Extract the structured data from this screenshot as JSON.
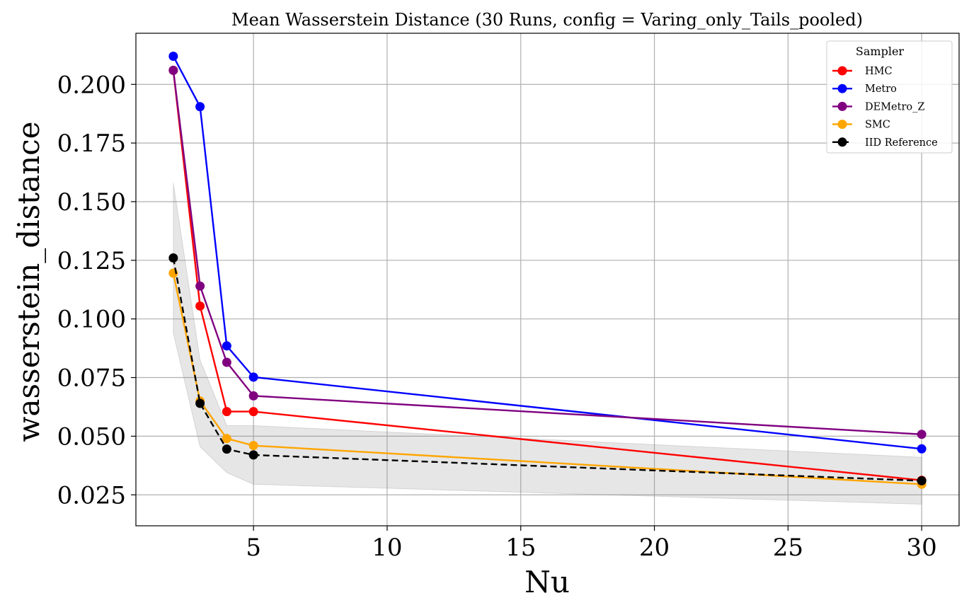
{
  "chart_data": {
    "type": "line",
    "title": "Mean Wasserstein Distance (30 Runs, config = Varing_only_Tails_pooled)",
    "xlabel": "Nu",
    "ylabel": "wasserstein_distance",
    "xlim": [
      0.6,
      31.4
    ],
    "ylim": [
      0.0118,
      0.2218
    ],
    "xticks": [
      5,
      10,
      15,
      20,
      25,
      30
    ],
    "yticks": [
      0.025,
      0.05,
      0.075,
      0.1,
      0.125,
      0.15,
      0.175,
      0.2
    ],
    "xtick_labels": [
      "5",
      "10",
      "15",
      "20",
      "25",
      "30"
    ],
    "ytick_labels": [
      "0.025",
      "0.050",
      "0.075",
      "0.100",
      "0.125",
      "0.150",
      "0.175",
      "0.200"
    ],
    "grid": true,
    "legend_title": "Sampler",
    "legend_position": "top-right",
    "x": [
      2,
      3,
      4,
      5,
      30
    ],
    "series": [
      {
        "name": "HMC",
        "color": "#ff0000",
        "dashed": false,
        "values": [
          0.206,
          0.1055,
          0.0605,
          0.0605,
          0.0312
        ]
      },
      {
        "name": "Metro",
        "color": "#0000ff",
        "dashed": false,
        "values": [
          0.212,
          0.1905,
          0.0885,
          0.0752,
          0.0446
        ]
      },
      {
        "name": "DEMetro_Z",
        "color": "#800080",
        "dashed": false,
        "values": [
          0.206,
          0.114,
          0.0815,
          0.0672,
          0.0508
        ]
      },
      {
        "name": "SMC",
        "color": "#ffa500",
        "dashed": false,
        "values": [
          0.1195,
          0.065,
          0.049,
          0.046,
          0.0295
        ]
      },
      {
        "name": "IID Reference",
        "color": "#000000",
        "dashed": true,
        "values": [
          0.126,
          0.064,
          0.0445,
          0.042,
          0.031
        ]
      }
    ],
    "band": {
      "color": "#808080",
      "lower": [
        0.094,
        0.0455,
        0.0345,
        0.0295,
        0.021
      ],
      "upper": [
        0.158,
        0.0825,
        0.0545,
        0.0545,
        0.041
      ]
    }
  }
}
